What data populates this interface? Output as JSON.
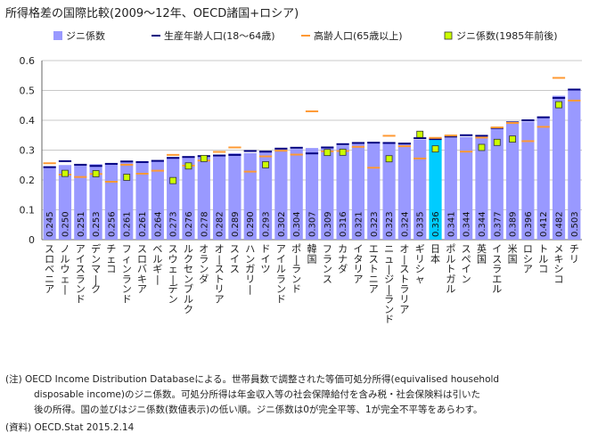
{
  "title": "所得格差の国際比較(2009〜12年、OECD諸国+ロシア)",
  "notes": [
    "(注) OECD Income Distribution Databaseによる。世帯員数で調整された等価可処分所得(equivalised household",
    "disposable income)のジニ係数。可処分所得は年金収入等の社会保障給付を含み税・社会保険料は引いた",
    "後の所得。国の並びはジニ係数(数値表示)の低い順。ジニ係数は0が完全平等、1が完全不平等をあらわす。"
  ],
  "source": "(資料) OECD.Stat 2015.2.14",
  "colors": {
    "bar": "#9999ff",
    "bar_highlight": "#00ccff",
    "working_age": "#000080",
    "elderly": "#ff9933",
    "gini_1985": "#ccff00"
  },
  "chart_data": {
    "type": "bar",
    "ylim": [
      0,
      0.6
    ],
    "yticks": [
      "0",
      "0.1",
      "0.2",
      "0.3",
      "0.4",
      "0.5",
      "0.6"
    ],
    "legend": [
      {
        "key": "gini",
        "label": "ジニ係数"
      },
      {
        "key": "working_age",
        "label": "生産年齢人口(18〜64歳)"
      },
      {
        "key": "elderly",
        "label": "高齢人口(65歳以上)"
      },
      {
        "key": "gini_1985",
        "label": "ジニ係数(1985年前後)"
      }
    ],
    "highlight": "日本",
    "categories": [
      "スロベニア",
      "ノルウェー",
      "アイスランド",
      "デンマーク",
      "チェコ",
      "フィンランド",
      "スロバキア",
      "ベルギー",
      "スウェーデン",
      "ルクセンブルク",
      "オランダ",
      "オーストリア",
      "スイス",
      "ハンガリー",
      "ドイツ",
      "アイルランド",
      "ポーランド",
      "韓国",
      "フランス",
      "カナダ",
      "イタリア",
      "エストニア",
      "ニュージーランド",
      "オーストラリア",
      "ギリシャ",
      "日本",
      "ポルトガル",
      "スペイン",
      "英国",
      "イスラエル",
      "米国",
      "ロシア",
      "トルコ",
      "メキシコ",
      "チリ"
    ],
    "gini": [
      0.245,
      0.25,
      0.251,
      0.253,
      0.256,
      0.261,
      0.261,
      0.264,
      0.273,
      0.276,
      0.278,
      0.282,
      0.289,
      0.29,
      0.293,
      0.302,
      0.304,
      0.307,
      0.309,
      0.316,
      0.321,
      0.323,
      0.323,
      0.324,
      0.335,
      0.336,
      0.341,
      0.344,
      0.344,
      0.377,
      0.389,
      0.396,
      0.412,
      0.482,
      0.503
    ],
    "gini_labels": [
      "0.245",
      "0.250",
      "0.251",
      "0.253",
      "0.256",
      "0.261",
      "0.261",
      "0.264",
      "0.273",
      "0.276",
      "0.278",
      "0.282",
      "0.289",
      "0.290",
      "0.293",
      "0.302",
      "0.304",
      "0.307",
      "0.309",
      "0.316",
      "0.321",
      "0.323",
      "0.323",
      "0.324",
      "0.335",
      "0.336",
      "0.341",
      "0.344",
      "0.344",
      "0.377",
      "0.389",
      "0.396",
      "0.412",
      "0.482",
      "0.503"
    ],
    "working_age": [
      0.243,
      0.263,
      0.251,
      0.247,
      0.254,
      0.262,
      0.26,
      0.264,
      0.274,
      0.277,
      0.28,
      0.282,
      0.284,
      0.297,
      0.295,
      0.305,
      0.308,
      0.289,
      0.309,
      0.32,
      0.324,
      0.325,
      0.324,
      0.322,
      0.34,
      0.337,
      0.345,
      0.35,
      0.348,
      0.374,
      0.393,
      0.4,
      0.41,
      0.475,
      0.503
    ],
    "elderly": [
      0.256,
      0.218,
      0.21,
      0.22,
      0.194,
      0.251,
      0.221,
      0.231,
      0.284,
      0.248,
      0.265,
      0.294,
      0.309,
      0.228,
      0.279,
      0.298,
      0.285,
      0.43,
      0.296,
      0.297,
      0.311,
      0.241,
      0.348,
      0.313,
      0.272,
      0.341,
      0.349,
      0.295,
      0.342,
      0.376,
      0.391,
      0.33,
      0.378,
      0.542,
      0.466
    ],
    "gini_1985": [
      null,
      0.222,
      null,
      0.221,
      null,
      0.209,
      null,
      null,
      0.198,
      0.247,
      0.272,
      null,
      null,
      null,
      0.251,
      null,
      null,
      null,
      0.292,
      0.293,
      null,
      null,
      0.271,
      null,
      0.353,
      0.304,
      null,
      null,
      0.309,
      0.326,
      0.337,
      null,
      null,
      0.452,
      null
    ]
  }
}
